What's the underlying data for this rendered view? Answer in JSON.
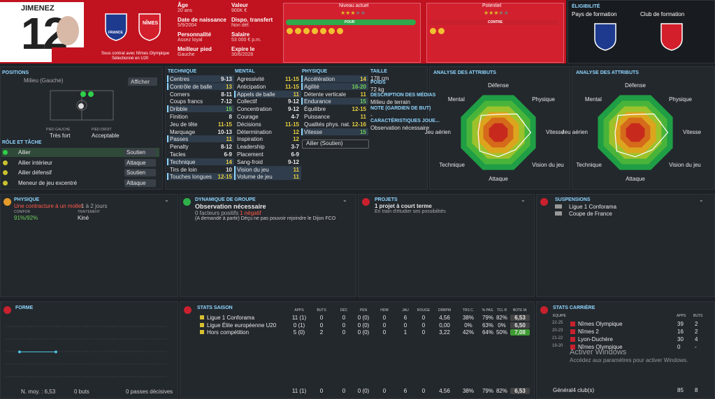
{
  "header": {
    "name": "JIMENEZ",
    "number": "12",
    "contract": "Sous contrat avec Nîmes Olympique",
    "selection": "Sélectionné en U20",
    "info": [
      [
        "Âge",
        "20 ans"
      ],
      [
        "Date de naissance",
        "5/9/2004"
      ],
      [
        "Personnalité",
        "Assez loyal"
      ],
      [
        "Meilleur pied",
        "Gauche"
      ]
    ],
    "info2": [
      [
        "Valeur",
        "900K €"
      ],
      [
        "Dispo. transfert",
        "Non déf."
      ],
      [
        "Salaire",
        "53 000 € p.m."
      ],
      [
        "Expire le",
        "30/6/2028"
      ]
    ],
    "current_label": "Niveau actuel",
    "current_stars": 2.5,
    "potential_label": "Potentiel",
    "potential_stars": 3,
    "pour": "POUR",
    "contre": "CONTRE"
  },
  "eligibility": {
    "title": "ÉLIGIBILITÉ",
    "country": "Pays de formation",
    "club": "Club de formation",
    "country_badge": "FRANCE",
    "club_badge": "NÎMES"
  },
  "positions": {
    "title": "POSITIONS",
    "position": "Milieu (Gauche)",
    "show": "Afficher",
    "left_foot_label": "PIED GAUCHE",
    "left_foot": "Très fort",
    "right_foot_label": "PIED DROIT",
    "right_foot": "Acceptable",
    "roles_title": "RÔLE ET TÂCHE",
    "roles": [
      [
        "Ailier",
        "Soutien"
      ],
      [
        "Ailier intérieur",
        "Attaque"
      ],
      [
        "Ailier défensif",
        "Soutien"
      ],
      [
        "Meneur de jeu excentré",
        "Attaque"
      ]
    ]
  },
  "attributes": [
    {
      "title": "TECHNIQUE",
      "items": [
        [
          "Centres",
          "9-13"
        ],
        [
          "Contrôle de balle",
          13
        ],
        [
          "Corners",
          "8-11"
        ],
        [
          "Coups francs",
          "7-12"
        ],
        [
          "Dribble",
          15
        ],
        [
          "Finition",
          8
        ],
        [
          "Jeu de tête",
          "11-15"
        ],
        [
          "Marquage",
          "10-13"
        ],
        [
          "Passes",
          11
        ],
        [
          "Penalty",
          "8-12"
        ],
        [
          "Tacles",
          "6-9"
        ],
        [
          "Technique",
          14
        ],
        [
          "Tirs de loin",
          10
        ],
        [
          "Touches longues",
          "12-15"
        ]
      ]
    },
    {
      "title": "MENTAL",
      "items": [
        [
          "Agressivité",
          "11-15"
        ],
        [
          "Anticipation",
          "11-15"
        ],
        [
          "Appels de balle",
          11
        ],
        [
          "Collectif",
          "9-12"
        ],
        [
          "Concentration",
          "9-12"
        ],
        [
          "Courage",
          "4-7"
        ],
        [
          "Décisions",
          "11-15"
        ],
        [
          "Détermination",
          12
        ],
        [
          "Inspiration",
          12
        ],
        [
          "Leadership",
          "3-7"
        ],
        [
          "Placement",
          "6-9"
        ],
        [
          "Sang-froid",
          "9-12"
        ],
        [
          "Vision du jeu",
          11
        ],
        [
          "Volume de jeu",
          11
        ]
      ]
    },
    {
      "title": "PHYSIQUE",
      "items": [
        [
          "Accélération",
          14
        ],
        [
          "Agilité",
          "16-20"
        ],
        [
          "Détente verticale",
          11
        ],
        [
          "Endurance",
          15
        ],
        [
          "Équilibre",
          "12-15"
        ],
        [
          "Puissance",
          11
        ],
        [
          "Qualités phys. nat.",
          "12-16"
        ],
        [
          "Vitesse",
          15
        ]
      ]
    }
  ],
  "role_select": "Ailier (Soutien)",
  "details": [
    [
      "TAILLE",
      "178 cm"
    ],
    [
      "POIDS",
      "72 kg"
    ],
    [
      "DESCRIPTION DES MÉDIAS",
      "Milieu de terrain"
    ],
    [
      "NOTE (GARDIEN DE BUT)",
      "-"
    ],
    [
      "CARACTÉRISTIQUES JOUE...",
      "Observation nécessaire"
    ]
  ],
  "analysis": [
    {
      "title": "ANALYSE DES ATTRIBUTS",
      "labels": [
        "Défense",
        "Physique",
        "Vitesse",
        "Vision du jeu",
        "Attaque",
        "Technique",
        "Jeu aérien",
        "Mental"
      ],
      "values": [
        9,
        13,
        16,
        12,
        12,
        13,
        10,
        12
      ]
    },
    {
      "title": "ANALYSE DES ATTRIBUTS",
      "labels": [
        "Défense",
        "Physique",
        "Vitesse",
        "Vision du jeu",
        "Attaque",
        "Technique",
        "Jeu aérien",
        "Mental"
      ],
      "values": [
        9,
        13,
        16,
        12,
        12,
        13,
        10,
        12
      ]
    }
  ],
  "physique": {
    "title": "PHYSIQUE",
    "injury": "Une contracture à un mollet",
    "duration": "1 à 2 jours",
    "condition_label": "CON/FOR",
    "condition": "91%/92%",
    "treatment_label": "TRAITEMENT",
    "treatment": "Kiné"
  },
  "group": {
    "title": "DYNAMIQUE DE GROUPE",
    "status": "Observation nécessaire",
    "positive": "0 facteurs positifs",
    "negative": "1 négatif",
    "note": "(A demandé à partir) Déçu ne pas pouvoir rejoindre le Dijon FCO"
  },
  "projects": {
    "title": "PROJETS",
    "main": "1 projet à court terme",
    "sub": "En train d'étudier ses possibilités"
  },
  "suspensions": {
    "title": "SUSPENSIONS",
    "items": [
      "Ligue 1 Conforama",
      "Coupe de France"
    ]
  },
  "form": {
    "title": "FORME",
    "values": [
      6.53,
      6.53
    ],
    "ylim": [
      4,
      9
    ],
    "average": "N. moy. : 6,53",
    "goals": "0 buts",
    "assists": "0 passes décisives"
  },
  "season": {
    "title": "STATS SAISON",
    "headers": [
      "APPS",
      "BUTS",
      "DÉC",
      "PEN",
      "HDM",
      "JAU",
      "ROUGE",
      "DRBPM",
      "TRS C.",
      "% PAS.",
      "TCL R",
      "NOTE M."
    ],
    "rows": [
      [
        "Ligue 1 Conforama",
        "11 (1)",
        "0",
        "0",
        "0 (0)",
        "0",
        "6",
        "0",
        "4,56",
        "38%",
        "79%",
        "82%",
        "6,53"
      ],
      [
        "Ligue Élite européenne U20",
        "0 (1)",
        "0",
        "0",
        "0 (0)",
        "0",
        "0",
        "0",
        "0,00",
        "0%",
        "63%",
        "0%",
        "6,50"
      ],
      [
        "Hors compétition",
        "5 (0)",
        "2",
        "0",
        "0 (0)",
        "0",
        "1",
        "0",
        "3,22",
        "42%",
        "64%",
        "50%",
        "7,08"
      ]
    ],
    "total": [
      "11 (1)",
      "0",
      "0",
      "0 (0)",
      "0",
      "6",
      "0",
      "4,56",
      "38%",
      "79%",
      "82%",
      "6,53"
    ]
  },
  "career": {
    "title": "STATS CARRIÈRE",
    "headers": [
      "ÉQUIPE",
      "APPS",
      "BUTS"
    ],
    "rows": [
      [
        "22-25",
        "Nîmes Olympique",
        "39",
        "2"
      ],
      [
        "20-23",
        "Nîmes 2",
        "16",
        "2"
      ],
      [
        "21-22",
        "Lyon-Duchère",
        "30",
        "4"
      ],
      [
        "19-20",
        "Nîmes Olympique",
        "0",
        "-"
      ]
    ],
    "total": [
      "Général4 club(s)",
      "85",
      "8"
    ]
  },
  "watermark": {
    "title": "Activer Windows",
    "text": "Accédez aux paramètres pour activer Windows."
  }
}
